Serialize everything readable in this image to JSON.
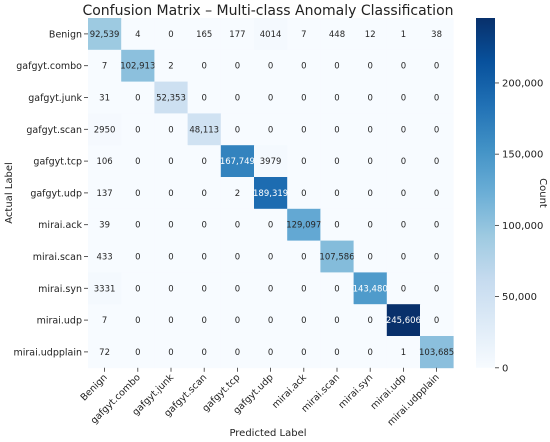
{
  "chart_data": {
    "type": "heatmap",
    "title": "Confusion Matrix – Multi-class Anomaly Classification",
    "xlabel": "Predicted Label",
    "ylabel": "Actual Label",
    "colorbar_label": "Count",
    "row_labels": [
      "Benign",
      "gafgyt.combo",
      "gafgyt.junk",
      "gafgyt.scan",
      "gafgyt.tcp",
      "gafgyt.udp",
      "mirai.ack",
      "mirai.scan",
      "mirai.syn",
      "mirai.udp",
      "mirai.udpplain"
    ],
    "col_labels": [
      "Benign",
      "gafgyt.combo",
      "gafgyt.junk",
      "gafgyt.scan",
      "gafgyt.tcp",
      "gafgyt.udp",
      "mirai.ack",
      "mirai.scan",
      "mirai.syn",
      "mirai.udp",
      "mirai.udpplain"
    ],
    "matrix": [
      [
        92539,
        4,
        0,
        165,
        177,
        4014,
        7,
        448,
        12,
        1,
        38
      ],
      [
        7,
        102913,
        2,
        0,
        0,
        0,
        0,
        0,
        0,
        0,
        0
      ],
      [
        31,
        0,
        52353,
        0,
        0,
        0,
        0,
        0,
        0,
        0,
        0
      ],
      [
        2950,
        0,
        0,
        48113,
        0,
        0,
        0,
        0,
        0,
        0,
        0
      ],
      [
        106,
        0,
        0,
        0,
        167749,
        3979,
        0,
        0,
        0,
        0,
        0
      ],
      [
        137,
        0,
        0,
        0,
        2,
        189319,
        0,
        0,
        0,
        0,
        0
      ],
      [
        39,
        0,
        0,
        0,
        0,
        0,
        129097,
        0,
        0,
        0,
        0
      ],
      [
        433,
        0,
        0,
        0,
        0,
        0,
        0,
        107586,
        0,
        0,
        0
      ],
      [
        3331,
        0,
        0,
        0,
        0,
        0,
        0,
        0,
        143480,
        0,
        0
      ],
      [
        7,
        0,
        0,
        0,
        0,
        0,
        0,
        0,
        0,
        245606,
        0
      ],
      [
        72,
        0,
        0,
        0,
        0,
        0,
        0,
        0,
        0,
        1,
        103685
      ]
    ],
    "cell_labels": [
      [
        "92,539",
        "4",
        "0",
        "165",
        "177",
        "4014",
        "7",
        "448",
        "12",
        "1",
        "38"
      ],
      [
        "7",
        "102,913",
        "2",
        "0",
        "0",
        "0",
        "0",
        "0",
        "0",
        "0",
        "0"
      ],
      [
        "31",
        "0",
        "52,353",
        "0",
        "0",
        "0",
        "0",
        "0",
        "0",
        "0",
        "0"
      ],
      [
        "2950",
        "0",
        "0",
        "48,113",
        "0",
        "0",
        "0",
        "0",
        "0",
        "0",
        "0"
      ],
      [
        "106",
        "0",
        "0",
        "0",
        "167,749",
        "3979",
        "0",
        "0",
        "0",
        "0",
        "0"
      ],
      [
        "137",
        "0",
        "0",
        "0",
        "2",
        "189,319",
        "0",
        "0",
        "0",
        "0",
        "0"
      ],
      [
        "39",
        "0",
        "0",
        "0",
        "0",
        "0",
        "129,097",
        "0",
        "0",
        "0",
        "0"
      ],
      [
        "433",
        "0",
        "0",
        "0",
        "0",
        "0",
        "0",
        "107,586",
        "0",
        "0",
        "0"
      ],
      [
        "3331",
        "0",
        "0",
        "0",
        "0",
        "0",
        "0",
        "0",
        "143,480",
        "0",
        "0"
      ],
      [
        "7",
        "0",
        "0",
        "0",
        "0",
        "0",
        "0",
        "0",
        "0",
        "245,606",
        "0"
      ],
      [
        "72",
        "0",
        "0",
        "0",
        "0",
        "0",
        "0",
        "0",
        "0",
        "1",
        "103,685"
      ]
    ],
    "color_range": [
      0,
      245606
    ],
    "colormap": "Blues",
    "colorbar_ticks": [
      0,
      50000,
      100000,
      150000,
      200000
    ],
    "colorbar_tick_labels": [
      "0",
      "50,000",
      "100,000",
      "150,000",
      "200,000"
    ]
  }
}
